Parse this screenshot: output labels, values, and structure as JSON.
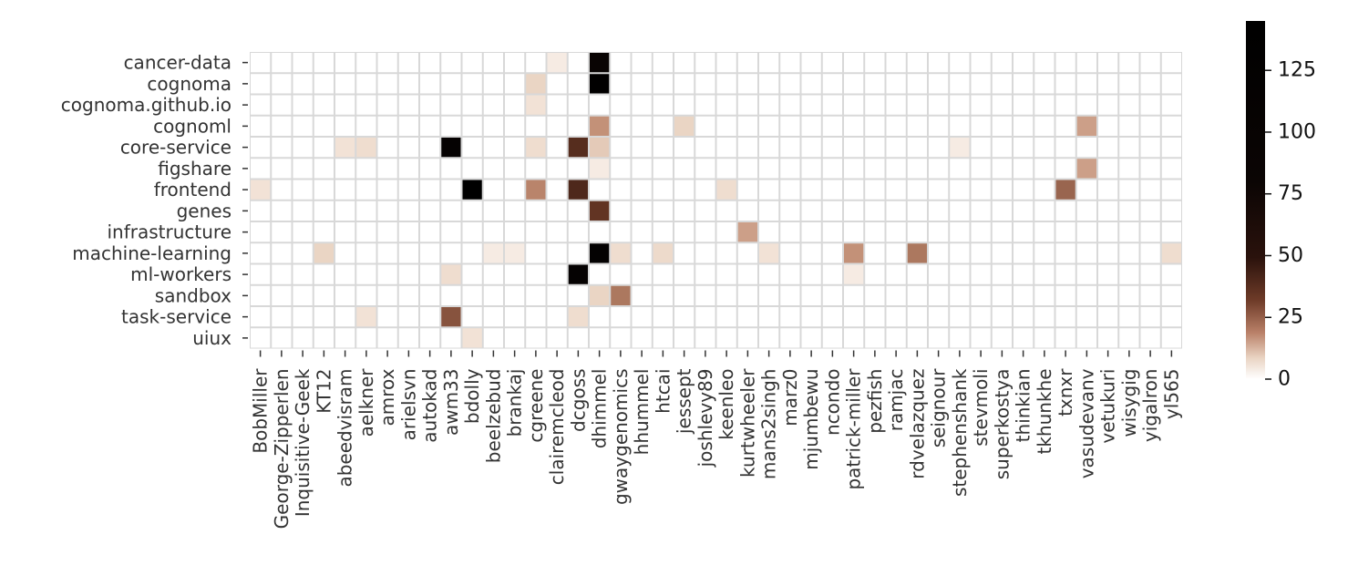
{
  "chart_data": {
    "type": "heatmap",
    "rows": [
      "cancer-data",
      "cognoma",
      "cognoma.github.io",
      "cognoml",
      "core-service",
      "figshare",
      "frontend",
      "genes",
      "infrastructure",
      "machine-learning",
      "ml-workers",
      "sandbox",
      "task-service",
      "uiux"
    ],
    "columns": [
      "BobMiller",
      "George-Zipperlen",
      "Inquisitive-Geek",
      "KT12",
      "abeedvisram",
      "aelkner",
      "amrox",
      "arielsvn",
      "autokad",
      "awm33",
      "bdolly",
      "beelzebud",
      "brankaj",
      "cgreene",
      "clairemcleod",
      "dcgoss",
      "dhimmel",
      "gwaygenomics",
      "hhummel",
      "htcai",
      "jessept",
      "joshlevy89",
      "keenleo",
      "kurtwheeler",
      "mans2singh",
      "marz0",
      "mjumbewu",
      "ncondo",
      "patrick-miller",
      "pezfish",
      "ramjac",
      "rdvelazquez",
      "seignour",
      "stephenshank",
      "stevmoli",
      "superkostya",
      "thinkian",
      "tkhunkhe",
      "txnxr",
      "vasudevanv",
      "vetukuri",
      "wisygig",
      "yigalron",
      "yl565"
    ],
    "cells": [
      {
        "row": "cancer-data",
        "col": "clairemcleod",
        "value": 2
      },
      {
        "row": "cancer-data",
        "col": "dhimmel",
        "value": 90
      },
      {
        "row": "cognoma",
        "col": "cgreene",
        "value": 8
      },
      {
        "row": "cognoma",
        "col": "dhimmel",
        "value": 140
      },
      {
        "row": "cognoma.github.io",
        "col": "cgreene",
        "value": 3
      },
      {
        "row": "cognoml",
        "col": "dhimmel",
        "value": 18
      },
      {
        "row": "cognoml",
        "col": "jessept",
        "value": 8
      },
      {
        "row": "cognoml",
        "col": "vasudevanv",
        "value": 16
      },
      {
        "row": "core-service",
        "col": "abeedvisram",
        "value": 3
      },
      {
        "row": "core-service",
        "col": "aelkner",
        "value": 5
      },
      {
        "row": "core-service",
        "col": "awm33",
        "value": 115
      },
      {
        "row": "core-service",
        "col": "cgreene",
        "value": 5
      },
      {
        "row": "core-service",
        "col": "dcgoss",
        "value": 38
      },
      {
        "row": "core-service",
        "col": "dhimmel",
        "value": 10
      },
      {
        "row": "core-service",
        "col": "stephenshank",
        "value": 2
      },
      {
        "row": "figshare",
        "col": "dhimmel",
        "value": 2
      },
      {
        "row": "figshare",
        "col": "vasudevanv",
        "value": 16
      },
      {
        "row": "frontend",
        "col": "BobMiller",
        "value": 3
      },
      {
        "row": "frontend",
        "col": "bdolly",
        "value": 145
      },
      {
        "row": "frontend",
        "col": "cgreene",
        "value": 20
      },
      {
        "row": "frontend",
        "col": "dcgoss",
        "value": 40
      },
      {
        "row": "frontend",
        "col": "keenleo",
        "value": 5
      },
      {
        "row": "frontend",
        "col": "txnxr",
        "value": 25
      },
      {
        "row": "genes",
        "col": "dhimmel",
        "value": 35
      },
      {
        "row": "infrastructure",
        "col": "kurtwheeler",
        "value": 16
      },
      {
        "row": "machine-learning",
        "col": "KT12",
        "value": 8
      },
      {
        "row": "machine-learning",
        "col": "beelzebud",
        "value": 2
      },
      {
        "row": "machine-learning",
        "col": "brankaj",
        "value": 2
      },
      {
        "row": "machine-learning",
        "col": "dhimmel",
        "value": 120
      },
      {
        "row": "machine-learning",
        "col": "gwaygenomics",
        "value": 5
      },
      {
        "row": "machine-learning",
        "col": "htcai",
        "value": 6
      },
      {
        "row": "machine-learning",
        "col": "mans2singh",
        "value": 3
      },
      {
        "row": "machine-learning",
        "col": "patrick-miller",
        "value": 18
      },
      {
        "row": "machine-learning",
        "col": "rdvelazquez",
        "value": 22
      },
      {
        "row": "machine-learning",
        "col": "yl565",
        "value": 5
      },
      {
        "row": "ml-workers",
        "col": "awm33",
        "value": 5
      },
      {
        "row": "ml-workers",
        "col": "dcgoss",
        "value": 115
      },
      {
        "row": "ml-workers",
        "col": "patrick-miller",
        "value": 2
      },
      {
        "row": "sandbox",
        "col": "dhimmel",
        "value": 8
      },
      {
        "row": "sandbox",
        "col": "gwaygenomics",
        "value": 22
      },
      {
        "row": "task-service",
        "col": "aelkner",
        "value": 3
      },
      {
        "row": "task-service",
        "col": "awm33",
        "value": 28
      },
      {
        "row": "task-service",
        "col": "dcgoss",
        "value": 5
      },
      {
        "row": "uiux",
        "col": "bdolly",
        "value": 3
      }
    ],
    "colorbar": {
      "min": 0,
      "max": 145,
      "ticks": [
        0,
        25,
        50,
        75,
        100,
        125
      ]
    },
    "colors": {
      "low": "#ffffff",
      "light": "#f1e3d8",
      "mid": "#c08a70",
      "dark": "#6b3a27",
      "max": "#000000",
      "grid": "#d8d8d8"
    }
  }
}
